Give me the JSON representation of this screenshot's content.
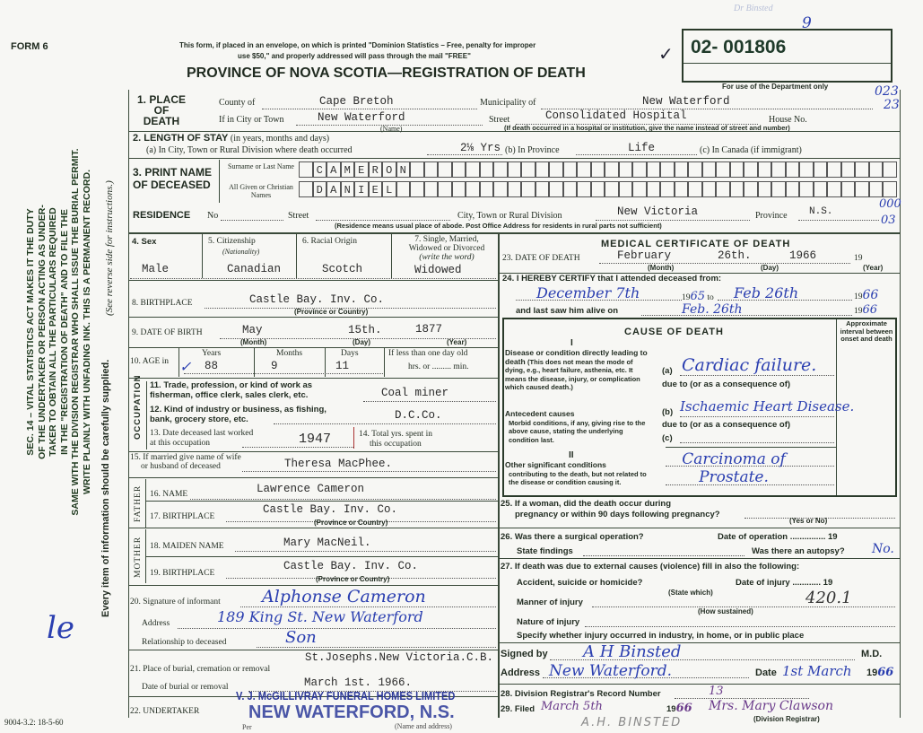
{
  "header": {
    "form_no": "FORM 6",
    "notice_line1": "This form, if placed in an envelope, on which is printed \"Dominion Statistics – Free, penalty for improper",
    "notice_line2": "use $50,\" and properly addressed will pass through the mail \"FREE\"",
    "title": "PROVINCE OF NOVA SCOTIA—REGISTRATION OF DEATH",
    "reg_number": "02- 001806",
    "reg_correction": "9",
    "dept_only": "For use of the Department only",
    "margin_note": "Dr Binsted",
    "code1": "023",
    "code2": "23"
  },
  "sidebar": {
    "lines": [
      "SEC. 14 – VITAL STATISTICS ACT MAKES IT THE DUTY",
      "OF THE UNDERTAKER OR PERSON ACTING AS UNDER-",
      "TAKER TO OBTAIN ALL THE PARTICULARS REQUIRED",
      "IN THE \"REGISTRATION OF DEATH\" AND TO FILE THE",
      "SAME WITH THE DIVISION REGISTRAR WHO SHALL ISSUE THE BURIAL PERMIT.",
      "WRITE PLAINLY WITH UNFADING INK. THIS IS A PERMANENT RECORD."
    ],
    "every_item": "Every item of information should be carefully supplied.",
    "see_reverse": "(See reverse side for instructions.)",
    "initials": "le",
    "form_code": "9004-3.2: 18-5-60"
  },
  "place": {
    "label": "1. PLACE OF DEATH",
    "county_label": "County of",
    "county": "Cape Bretoh",
    "municipality_label": "Municipality of",
    "municipality": "New Waterford",
    "city_label": "If in City or Town",
    "city": "New Waterford",
    "name_note": "(Name)",
    "street_label": "Street",
    "street": "Consolidated Hospital",
    "house_label": "House No.",
    "hospital_note": "(If death occurred in a hospital or institution, give the name instead of street and number)"
  },
  "stay": {
    "label": "2. LENGTH OF STAY",
    "label_note": "(in years, months and days)",
    "a_label": "(a) In City, Town or Rural Division where death occurred",
    "a": "2⅛ Yrs",
    "b_label": "(b) In Province",
    "b": "Life",
    "c_label": "(c) In Canada (if immigrant)"
  },
  "name": {
    "label1": "3. PRINT NAME",
    "label2": "OF DECEASED",
    "surname_label": "Surname or Last Name",
    "given_label": "All Given or Christian Names",
    "surname": [
      "C",
      "A",
      "M",
      "E",
      "R",
      "O",
      "N"
    ],
    "given": [
      "D",
      "A",
      "N",
      "I",
      "E",
      "L"
    ]
  },
  "residence": {
    "label": "RESIDENCE",
    "no_label": "No",
    "street_label": "Street",
    "city_label": "City, Town or Rural Division",
    "city": "New Victoria",
    "province_label": "Province",
    "province": "N.S.",
    "note": "(Residence means usual place of abode. Post Office Address for residents in rural parts not sufficient)",
    "code1": "000",
    "code2": "03"
  },
  "personal": {
    "sex_label": "4. Sex",
    "sex": "Male",
    "citizenship_label": "5. Citizenship",
    "citizenship_note": "(Nationality)",
    "citizenship": "Canadian",
    "racial_label": "6. Racial Origin",
    "racial": "Scotch",
    "marital_label1": "7. Single, Married,",
    "marital_label2": "Widowed or Divorced",
    "marital_note": "(write the word)",
    "marital": "Widowed",
    "birthplace_label": "8. BIRTHPLACE",
    "birthplace": "Castle Bay.    Inv. Co.",
    "prov_note": "(Province or Country)",
    "dob_label": "9. DATE OF BIRTH",
    "dob_month": "May",
    "dob_day": "15th.",
    "dob_year": "1877",
    "month_note": "(Month)",
    "day_note": "(Day)",
    "year_note": "(Year)",
    "age_label": "10. AGE in",
    "years_label": "Years",
    "years": "88",
    "months_label": "Months",
    "months": "9",
    "days_label": "Days",
    "days": "11",
    "less_day_label": "If less than one day old",
    "hrs_label": "hrs. or",
    "min_label": "min."
  },
  "occupation": {
    "side_label": "OCCUPATION",
    "trade_label1": "11. Trade, profession, or kind of work as",
    "trade_label2": "fisherman, office clerk, sales clerk, etc.",
    "trade": "Coal miner",
    "industry_label1": "12. Kind of industry or business, as fishing,",
    "industry_label2": "bank, grocery store, etc.",
    "industry": "D.C.Co.",
    "last_worked_label1": "13. Date deceased last worked",
    "last_worked_label2": "at this occupation",
    "last_worked": "1947",
    "total_label1": "14. Total yrs. spent in",
    "total_label2": "this occupation"
  },
  "family": {
    "spouse_label1": "15. If married give name of wife",
    "spouse_label2": "or husband of deceased",
    "spouse": "Theresa MacPhee.",
    "father_side": "FATHER",
    "father_name_label": "16. NAME",
    "father_name": "Lawrence Cameron",
    "father_bp_label": "17. BIRTHPLACE",
    "father_bp": "Castle Bay.   Inv. Co.",
    "mother_side": "MOTHER",
    "mother_name_label": "18. MAIDEN NAME",
    "mother_name": "Mary MacNeil.",
    "mother_bp_label": "19. BIRTHPLACE",
    "mother_bp": "Castle Bay.   Inv. Co."
  },
  "informant": {
    "label": "20. Signature of informant",
    "signature": "Alphonse Cameron",
    "address_label": "Address",
    "address": "189 King St. New Waterford",
    "relationship_label": "Relationship to deceased",
    "relationship": "Son"
  },
  "burial": {
    "place_label": "21. Place of burial, cremation or removal",
    "place": "St.Josephs.New Victoria.C.B.",
    "date_label": "Date of burial or removal",
    "date": "March 1st. 1966.",
    "undertaker_label": "22. UNDERTAKER",
    "undertaker_stamp1": "V. J. McGILLIVRAY FUNERAL HOMES LIMITED",
    "undertaker_stamp2": "NEW WATERFORD, N.S.",
    "name_address_note": "(Name and address)",
    "per_label": "Per"
  },
  "medical": {
    "title": "MEDICAL CERTIFICATE OF DEATH",
    "dod_label": "23. DATE OF DEATH",
    "dod_month": "February",
    "dod_day": "26th.",
    "dod_year": "1966",
    "nineteen": "19",
    "certify_label": "24. I HEREBY CERTIFY that I attended deceased from:",
    "from": "December 7th",
    "from_year": "65",
    "to_label": "to",
    "to": "Feb 26th",
    "to_year": "66",
    "last_saw_label": "and last saw him alive on",
    "last_saw": "Feb. 26th",
    "last_saw_year": "66"
  },
  "cause": {
    "title": "CAUSE OF DEATH",
    "roman1": "I",
    "roman2": "II",
    "interval_label": "Approximate interval between onset and death",
    "direct_label": "Disease or condition directly leading to death",
    "direct_note": "(This does not mean the mode of dying, e.g., heart failure, asthenia, etc. It means the disease, injury, or complication which caused death.)",
    "antecedent_label": "Antecedent causes",
    "antecedent_note": "Morbid conditions, if any, giving rise to the above cause, stating the underlying condition last.",
    "other_label": "Other significant conditions",
    "other_note": "contributing to the death, but not related to the disease or condition causing it.",
    "a_label": "(a)",
    "a": "Cardiac failure.",
    "due_to": "due to (or as a consequence of)",
    "b_label": "(b)",
    "b": "Ischaemic Heart Disease.",
    "c_label": "(c)",
    "other": "Carcinoma of Prostate."
  },
  "questions": {
    "q25_1": "25. If a woman, did the death occur during",
    "q25_2": "pregnancy or within 90 days following pregnancy?",
    "yes_no": "(Yes or No)",
    "q26": "26. Was there a surgical operation?",
    "op_date": "Date of operation",
    "findings": "State findings",
    "autopsy_label": "Was there an autopsy?",
    "autopsy": "No.",
    "q27": "27. If death was due to external causes (violence) fill in also the following:",
    "accident": "Accident, suicide or homicide?",
    "state_which": "(State which)",
    "injury_date": "Date of injury",
    "manner": "Manner of injury",
    "how": "(How sustained)",
    "code": "420.1",
    "nature": "Nature of injury",
    "specify": "Specify whether injury occurred in industry, in home, or in public place"
  },
  "signature": {
    "signed_label": "Signed by",
    "signed": "A H Binsted",
    "md": "M.D.",
    "address_label": "Address",
    "address": "New Waterford.",
    "date_label": "Date",
    "date": "1st March",
    "year": "66"
  },
  "registrar": {
    "record_label": "28. Division Registrar's Record Number",
    "record": "13",
    "filed_label": "29. Filed",
    "filed": "March 5th",
    "filed_year": "66",
    "registrar": "Mrs. Mary Clawson",
    "registrar_note": "(Division Registrar)",
    "pencil_name": "A.H. BINSTED"
  },
  "colors": {
    "ink": "#2b3fb0",
    "form": "#1f2a1f",
    "paper": "#f7f7f4"
  }
}
